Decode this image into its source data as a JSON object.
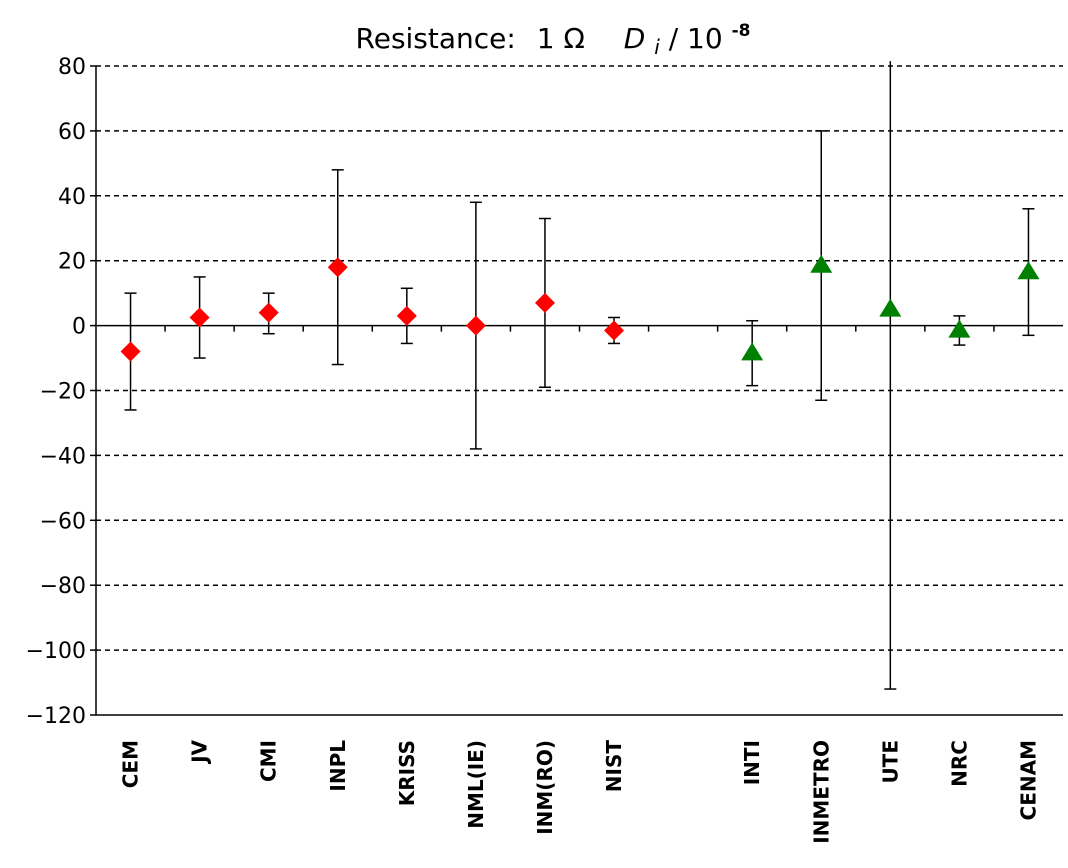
{
  "chart_data": {
    "type": "scatter",
    "title": {
      "prefix": "Resistance:",
      "value": "1 Ω",
      "symbol": "D",
      "subscript": "i",
      "separator": " / 10",
      "exponent": "-8"
    },
    "xlabel": "",
    "ylabel": "",
    "ylim": [
      -120,
      80
    ],
    "yticks": [
      80,
      60,
      40,
      20,
      0,
      -20,
      -40,
      -60,
      -80,
      -100,
      -120
    ],
    "grid": "horizontal-dashed",
    "categories": [
      "CEM",
      "JV",
      "CMI",
      "INPL",
      "KRISS",
      "NML(IE)",
      "INM(RO)",
      "NIST",
      "",
      "INTI",
      "INMETRO",
      "UTE",
      "NRC",
      "CENAM"
    ],
    "series": [
      {
        "marker": "diamond",
        "color": "#ff0000",
        "points": [
          {
            "label": "CEM",
            "y": -8,
            "lower": -26,
            "upper": 10
          },
          {
            "label": "JV",
            "y": 2.5,
            "lower": -10,
            "upper": 15
          },
          {
            "label": "CMI",
            "y": 4,
            "lower": -2.5,
            "upper": 10
          },
          {
            "label": "INPL",
            "y": 18,
            "lower": -12,
            "upper": 48
          },
          {
            "label": "KRISS",
            "y": 3,
            "lower": -5.5,
            "upper": 11.5
          },
          {
            "label": "NML(IE)",
            "y": 0,
            "lower": -38,
            "upper": 38
          },
          {
            "label": "INM(RO)",
            "y": 7,
            "lower": -19,
            "upper": 33
          },
          {
            "label": "NIST",
            "y": -1.5,
            "lower": -5.5,
            "upper": 2.5
          }
        ]
      },
      {
        "marker": "triangle",
        "color": "#008000",
        "points": [
          {
            "label": "INTI",
            "y": -8.5,
            "lower": -18.5,
            "upper": 1.5
          },
          {
            "label": "INMETRO",
            "y": 18.5,
            "lower": -23,
            "upper": 60
          },
          {
            "label": "UTE",
            "y": 5,
            "lower": -112,
            "upper": 84
          },
          {
            "label": "NRC",
            "y": -1.5,
            "lower": -6,
            "upper": 3
          },
          {
            "label": "CENAM",
            "y": 16.5,
            "lower": -3,
            "upper": 36
          }
        ]
      }
    ]
  }
}
